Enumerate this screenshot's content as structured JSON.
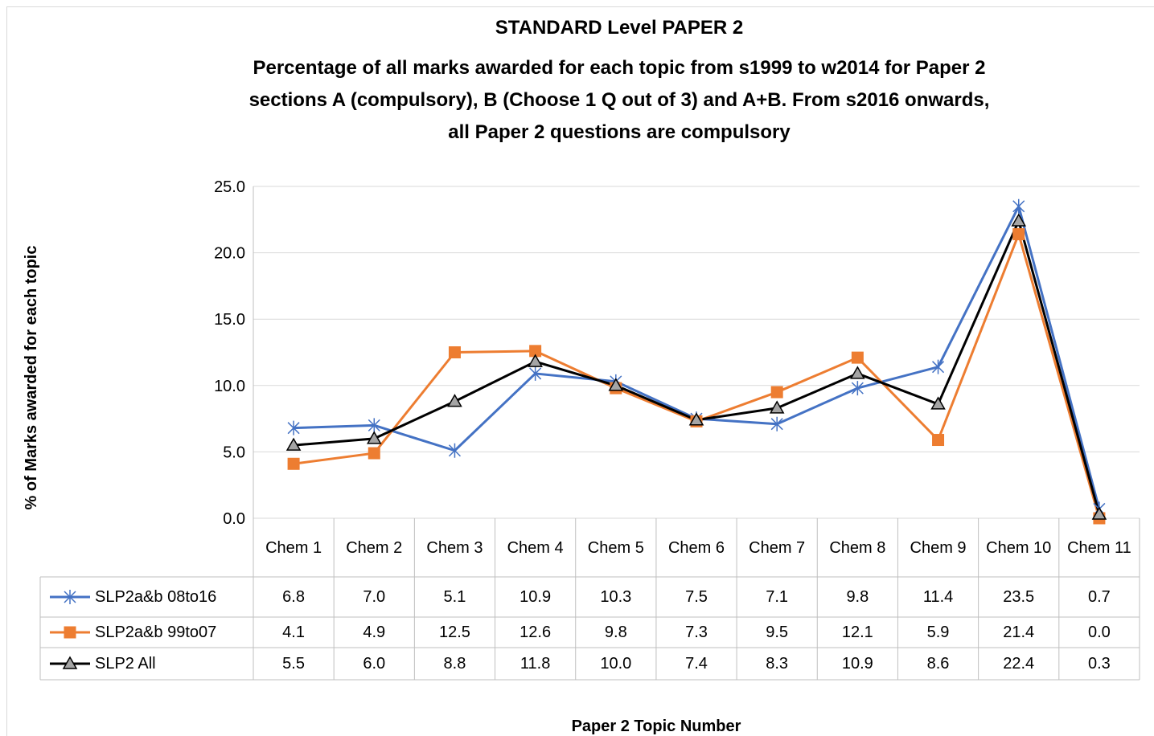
{
  "chart_data": {
    "type": "line",
    "title": "STANDARD Level PAPER 2",
    "subtitle": [
      "Percentage of all marks awarded for each topic from s1999 to w2014 for Paper 2",
      "sections A (compulsory), B (Choose 1 Q out of 3) and A+B. From s2016 onwards,",
      "all Paper 2 questions are compulsory"
    ],
    "y_label": "% of Marks awarded for each topic",
    "x_label": "Paper 2 Topic Number",
    "categories": [
      "Chem 1",
      "Chem 2",
      "Chem 3",
      "Chem 4",
      "Chem 5",
      "Chem 6",
      "Chem 7",
      "Chem 8",
      "Chem 9",
      "Chem 10",
      "Chem 11"
    ],
    "series": [
      {
        "name": "SLP2a&b 08to16",
        "color": "#4472c4",
        "marker": "star",
        "marker_fill": "#4472c4",
        "values": [
          6.8,
          7.0,
          5.1,
          10.9,
          10.3,
          7.5,
          7.1,
          9.8,
          11.4,
          23.5,
          0.7
        ],
        "value_labels": [
          "6.8",
          "7.0",
          "5.1",
          "10.9",
          "10.3",
          "7.5",
          "7.1",
          "9.8",
          "11.4",
          "23.5",
          "0.7"
        ]
      },
      {
        "name": "SLP2a&b 99to07",
        "color": "#ed7d31",
        "marker": "square",
        "marker_fill": "#ed7d31",
        "values": [
          4.1,
          4.9,
          12.5,
          12.6,
          9.8,
          7.3,
          9.5,
          12.1,
          5.9,
          21.4,
          0.0
        ],
        "value_labels": [
          "4.1",
          "4.9",
          "12.5",
          "12.6",
          "9.8",
          "7.3",
          "9.5",
          "12.1",
          "5.9",
          "21.4",
          "0.0"
        ]
      },
      {
        "name": "SLP2 All",
        "color": "#000000",
        "marker": "triangle",
        "marker_fill": "#a5a5a5",
        "values": [
          5.5,
          6.0,
          8.8,
          11.8,
          10.0,
          7.4,
          8.3,
          10.9,
          8.6,
          22.4,
          0.3
        ],
        "value_labels": [
          "5.5",
          "6.0",
          "8.8",
          "11.8",
          "10.0",
          "7.4",
          "8.3",
          "10.9",
          "8.6",
          "22.4",
          "0.3"
        ]
      }
    ],
    "ylim": [
      0,
      25
    ],
    "yticks": [
      {
        "value": 0,
        "label": "0.0"
      },
      {
        "value": 5,
        "label": "5.0"
      },
      {
        "value": 10,
        "label": "10.0"
      },
      {
        "value": 15,
        "label": "15.0"
      },
      {
        "value": 20,
        "label": "20.0"
      },
      {
        "value": 25,
        "label": "25.0"
      }
    ],
    "grid": true
  }
}
